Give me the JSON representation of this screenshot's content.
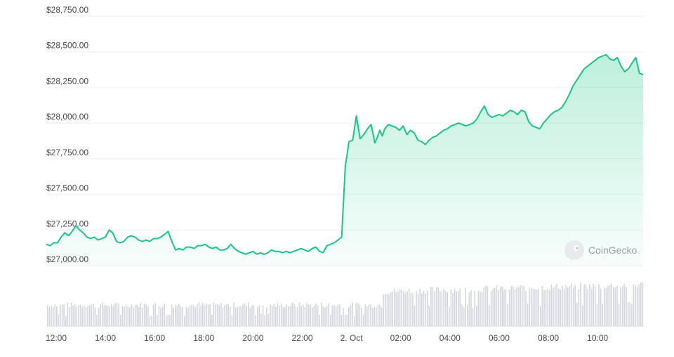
{
  "chart_data": {
    "type": "area",
    "title": "",
    "xlabel": "",
    "ylabel": "",
    "currency_prefix": "$",
    "ylim": [
      27000,
      28750
    ],
    "yticks": [
      27000,
      27250,
      27500,
      27750,
      28000,
      28250,
      28500,
      28750
    ],
    "ytick_labels": [
      "$27,000.00",
      "$27,250.00",
      "$27,500.00",
      "$27,750.00",
      "$28,000.00",
      "$28,250.00",
      "$28,500.00",
      "$28,750.00"
    ],
    "xlim_hours": [
      11.6,
      35.85
    ],
    "xtick_labels": [
      "12:00",
      "14:00",
      "16:00",
      "18:00",
      "20:00",
      "22:00",
      "2. Oct",
      "02:00",
      "04:00",
      "06:00",
      "08:00",
      "10:00"
    ],
    "xtick_hours": [
      12,
      14,
      16,
      18,
      20,
      22,
      24,
      26,
      28,
      30,
      32,
      34
    ],
    "grid": true,
    "line_color": "#16c784",
    "fill_color": "#16c784",
    "volume_color": "#d3d6dc",
    "watermark": "CoinGecko",
    "series": [
      {
        "x_hours": [
          11.6,
          11.75,
          11.9,
          12.05,
          12.2,
          12.35,
          12.5,
          12.65,
          12.8,
          12.95,
          13.1,
          13.25,
          13.4,
          13.55,
          13.7,
          13.85,
          14.0,
          14.15,
          14.3,
          14.45,
          14.6,
          14.75,
          14.9,
          15.05,
          15.2,
          15.35,
          15.5,
          15.65,
          15.8,
          15.95,
          16.1,
          16.25,
          16.4,
          16.55,
          16.7,
          16.85,
          17.0,
          17.15,
          17.3,
          17.45,
          17.6,
          17.75,
          17.9,
          18.05,
          18.2,
          18.35,
          18.5,
          18.65,
          18.8,
          18.95,
          19.1,
          19.25,
          19.4,
          19.55,
          19.7,
          19.85,
          20.0,
          20.15,
          20.3,
          20.45,
          20.6,
          20.75,
          20.9,
          21.05,
          21.2,
          21.35,
          21.5,
          21.65,
          21.8,
          21.95,
          22.1,
          22.25,
          22.4,
          22.55,
          22.7,
          22.85,
          23.0,
          23.15,
          23.3,
          23.45,
          23.6,
          23.75,
          23.9,
          24.05,
          24.2,
          24.35,
          24.5,
          24.65,
          24.8,
          24.95,
          25.05,
          25.15,
          25.25,
          25.35,
          25.5,
          25.65,
          25.8,
          25.95,
          26.1,
          26.25,
          26.4,
          26.55,
          26.7,
          26.85,
          27.0,
          27.15,
          27.3,
          27.45,
          27.6,
          27.75,
          27.9,
          28.05,
          28.2,
          28.35,
          28.5,
          28.65,
          28.8,
          28.95,
          29.1,
          29.25,
          29.4,
          29.55,
          29.7,
          29.85,
          30.0,
          30.15,
          30.3,
          30.45,
          30.6,
          30.75,
          30.9,
          31.05,
          31.2,
          31.35,
          31.5,
          31.65,
          31.8,
          31.95,
          32.1,
          32.25,
          32.4,
          32.55,
          32.7,
          32.85,
          33.0,
          33.15,
          33.3,
          33.45,
          33.6,
          33.75,
          33.9,
          34.05,
          34.2,
          34.35,
          34.5,
          34.65,
          34.8,
          34.95,
          35.1,
          35.25,
          35.4,
          35.55,
          35.7,
          35.85
        ],
        "values": [
          27150,
          27140,
          27160,
          27160,
          27200,
          27230,
          27210,
          27240,
          27280,
          27250,
          27230,
          27200,
          27190,
          27200,
          27180,
          27190,
          27200,
          27250,
          27230,
          27170,
          27160,
          27170,
          27200,
          27210,
          27200,
          27180,
          27170,
          27180,
          27170,
          27190,
          27190,
          27200,
          27220,
          27240,
          27170,
          27110,
          27120,
          27110,
          27130,
          27130,
          27120,
          27140,
          27140,
          27150,
          27130,
          27120,
          27130,
          27110,
          27110,
          27120,
          27150,
          27120,
          27100,
          27090,
          27080,
          27090,
          27100,
          27080,
          27090,
          27080,
          27090,
          27110,
          27100,
          27100,
          27090,
          27100,
          27090,
          27100,
          27110,
          27120,
          27110,
          27100,
          27120,
          27130,
          27100,
          27090,
          27140,
          27150,
          27160,
          27180,
          27200,
          27700,
          27870,
          27880,
          28050,
          27890,
          27920,
          27960,
          27990,
          27860,
          27900,
          27950,
          27910,
          27960,
          27990,
          27980,
          27970,
          27950,
          27980,
          27920,
          27950,
          27930,
          27880,
          27870,
          27850,
          27880,
          27900,
          27910,
          27930,
          27950,
          27960,
          27980,
          27990,
          28000,
          27990,
          27980,
          27990,
          28000,
          28030,
          28080,
          28120,
          28060,
          28040,
          28050,
          28060,
          28050,
          28070,
          28090,
          28080,
          28060,
          28090,
          28080,
          28010,
          27980,
          27970,
          27960,
          28000,
          28030,
          28060,
          28080,
          28090,
          28110,
          28150,
          28200,
          28260,
          28300,
          28340,
          28380,
          28400,
          28420,
          28440,
          28460,
          28470,
          28480,
          28450,
          28440,
          28460,
          28400,
          28360,
          28380,
          28420,
          28460,
          28350,
          28340
        ]
      }
    ]
  }
}
